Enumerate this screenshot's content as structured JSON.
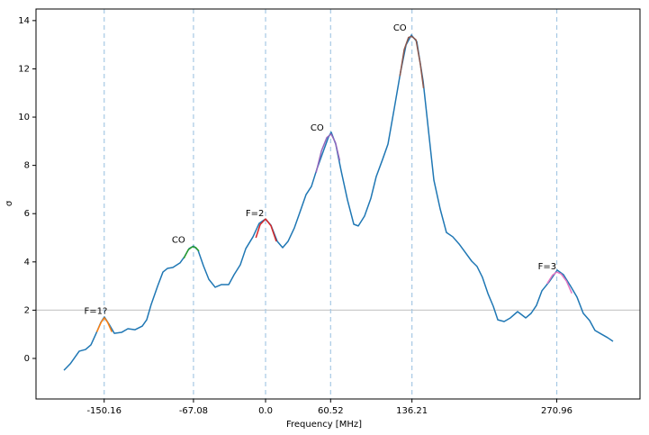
{
  "chart_data": {
    "type": "line",
    "xlabel": "Frequency [MHz]",
    "ylabel": "σ",
    "xlim": [
      -213.6,
      348.4
    ],
    "ylim": [
      -1.68,
      14.48
    ],
    "xticks": [
      -150.16,
      -67.08,
      {
        "value": 0,
        "label": "0.0"
      },
      60.52,
      136.21,
      270.96
    ],
    "yticks": [
      0,
      2,
      4,
      6,
      8,
      10,
      12,
      14
    ],
    "vlines_at_xticks": true,
    "vline_color": "#a6c8e4",
    "hline": 2,
    "hline_color": "#cccccc",
    "series": [
      {
        "color": "#1f77b4",
        "x": [
          -187.6,
          -181.7,
          -173.4,
          -167.5,
          -162.5,
          -158.3,
          -153.3,
          -150,
          -145.7,
          -140.7,
          -134,
          -128.1,
          -121.4,
          -114.7,
          -110.6,
          -106.4,
          -100.5,
          -95.5,
          -91.3,
          -86.3,
          -79.6,
          -75.4,
          -71.2,
          -67,
          -62.8,
          -57.8,
          -52.8,
          -46.9,
          -41,
          -34.3,
          -29.3,
          -23.5,
          -18.4,
          -11.7,
          -5.9,
          0,
          5,
          10.9,
          15.9,
          20.9,
          26.8,
          31.8,
          37.7,
          42.7,
          47.7,
          53.1,
          58.6,
          61.1,
          65.3,
          70.4,
          76.2,
          82.1,
          86.3,
          92.1,
          98,
          103,
          108.9,
          113.9,
          119.8,
          125.6,
          130.7,
          135.7,
          140.7,
          146.6,
          151.6,
          156.6,
          162.5,
          168.3,
          174.2,
          180.1,
          185.1,
          191.8,
          196.8,
          201.8,
          206.9,
          211.9,
          216.1,
          222,
          227.8,
          234.5,
          242.1,
          247.1,
          252.1,
          257.1,
          263.8,
          271.4,
          277.2,
          283.9,
          289.8,
          295.6,
          301.5,
          306.5,
          312.4,
          318.3,
          323.3
        ],
        "values": [
          -0.49,
          -0.22,
          0.3,
          0.37,
          0.56,
          0.97,
          1.49,
          1.72,
          1.42,
          1.04,
          1.08,
          1.23,
          1.19,
          1.34,
          1.6,
          2.24,
          2.99,
          3.58,
          3.73,
          3.77,
          3.96,
          4.22,
          4.55,
          4.66,
          4.48,
          3.84,
          3.28,
          2.95,
          3.06,
          3.06,
          3.47,
          3.88,
          4.55,
          5.04,
          5.6,
          5.78,
          5.52,
          4.85,
          4.59,
          4.85,
          5.41,
          6.04,
          6.79,
          7.13,
          7.84,
          8.51,
          9.18,
          9.37,
          8.88,
          7.76,
          6.57,
          5.56,
          5.49,
          5.9,
          6.64,
          7.54,
          8.25,
          8.88,
          10.37,
          11.87,
          12.99,
          13.4,
          13.13,
          11.49,
          9.44,
          7.39,
          6.19,
          5.22,
          5.04,
          4.74,
          4.44,
          4.03,
          3.81,
          3.36,
          2.69,
          2.16,
          1.6,
          1.53,
          1.68,
          1.94,
          1.68,
          1.87,
          2.2,
          2.8,
          3.17,
          3.66,
          3.47,
          2.99,
          2.54,
          1.87,
          1.57,
          1.16,
          1.01,
          0.86,
          0.71
        ]
      },
      {
        "color": "#ff7f0e",
        "x": [
          -157,
          -153,
          -150,
          -147,
          -143
        ],
        "values": [
          1.1,
          1.5,
          1.68,
          1.5,
          1.1
        ]
      },
      {
        "color": "#2ca02c",
        "x": [
          -76,
          -72,
          -68,
          -65,
          -62
        ],
        "values": [
          4.15,
          4.5,
          4.63,
          4.6,
          4.45
        ]
      },
      {
        "color": "#d62728",
        "x": [
          -9,
          -5,
          0,
          5,
          10
        ],
        "values": [
          5.0,
          5.55,
          5.78,
          5.5,
          4.85
        ]
      },
      {
        "color": "#9467bd",
        "x": [
          47,
          52,
          57,
          61,
          65,
          69
        ],
        "values": [
          7.7,
          8.6,
          9.15,
          9.3,
          8.95,
          8.2
        ]
      },
      {
        "color": "#8c564b",
        "x": [
          125,
          129,
          133,
          136,
          140,
          144,
          147
        ],
        "values": [
          11.7,
          12.8,
          13.3,
          13.35,
          13.2,
          12.2,
          11.2
        ]
      },
      {
        "color": "#e377c2",
        "x": [
          262,
          267,
          271,
          275,
          280,
          285
        ],
        "values": [
          3.1,
          3.45,
          3.58,
          3.5,
          3.2,
          2.7
        ]
      }
    ],
    "annotations": [
      {
        "text": "F=1?",
        "x": -158,
        "y": 1.95
      },
      {
        "text": "CO",
        "x": -81,
        "y": 4.9
      },
      {
        "text": "F=2",
        "x": -10,
        "y": 6.0
      },
      {
        "text": "CO",
        "x": 48,
        "y": 9.55
      },
      {
        "text": "CO",
        "x": 125,
        "y": 13.7
      },
      {
        "text": "F=3",
        "x": 262,
        "y": 3.8
      }
    ]
  }
}
